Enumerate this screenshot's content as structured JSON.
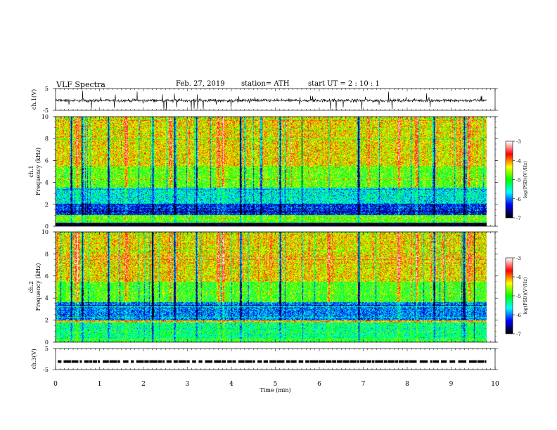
{
  "header": {
    "title": "VLF  Spectra",
    "date": "Feb. 27, 2019",
    "station": "station= ATH",
    "start_ut": "start  UT  =    2  : 10 : 1"
  },
  "colors": {
    "colormap": [
      "#000000",
      "#0000ff",
      "#00ffff",
      "#00ff00",
      "#ffff00",
      "#ff0000",
      "#ffffff"
    ]
  },
  "chart_data": [
    {
      "type": "line",
      "panel": "ch1-waveform",
      "ylabel": "ch.1(V)",
      "yticks": [
        "5",
        "-5"
      ],
      "ylim": [
        -5,
        5
      ],
      "xlim": [
        0,
        10
      ],
      "description_values": {
        "baseline_v": -0.5,
        "noise_amplitude_v": 0.6,
        "spike_max_v": 4.5,
        "data_end_min": 9.8
      }
    },
    {
      "type": "heatmap",
      "panel": "ch1-spectrogram",
      "ylabel_lines": [
        "ch.1",
        "Frequency  (kHz)"
      ],
      "yticks": [
        "0",
        "2",
        "4",
        "6",
        "8",
        "10"
      ],
      "ylim": [
        0,
        10
      ],
      "xlim": [
        0,
        10
      ],
      "data_end_min": 9.8,
      "colorbar": {
        "label": "log(PSD)(V²/Hz)",
        "ticks": [
          "-3",
          "-4",
          "-5",
          "-6",
          "-7"
        ],
        "range": [
          -7,
          -3
        ]
      },
      "bands": [
        {
          "f_from_khz": 0.0,
          "f_to_khz": 0.3,
          "log_psd": -7.0
        },
        {
          "f_from_khz": 0.3,
          "f_to_khz": 1.0,
          "log_psd": -4.8
        },
        {
          "f_from_khz": 1.0,
          "f_to_khz": 2.1,
          "log_psd": -6.3
        },
        {
          "f_from_khz": 2.1,
          "f_to_khz": 3.5,
          "log_psd": -5.6
        },
        {
          "f_from_khz": 3.5,
          "f_to_khz": 5.5,
          "log_psd": -4.8
        },
        {
          "f_from_khz": 5.5,
          "f_to_khz": 10.0,
          "log_psd": -4.3
        }
      ],
      "bright_columns_min": [
        0.5,
        1.6,
        2.6,
        3.7,
        3.8,
        6.2,
        7.8,
        8.2,
        9.4
      ],
      "dark_columns_min": [
        0.35,
        0.6,
        1.2,
        2.2,
        2.7,
        3.2,
        4.2,
        5.1,
        6.9,
        8.6,
        9.3
      ]
    },
    {
      "type": "heatmap",
      "panel": "ch2-spectrogram",
      "ylabel_lines": [
        "ch.2",
        "Frequency  (kHz)"
      ],
      "yticks": [
        "0",
        "2",
        "4",
        "6",
        "8",
        "10"
      ],
      "ylim": [
        0,
        10
      ],
      "xlim": [
        0,
        10
      ],
      "data_end_min": 9.8,
      "colorbar": {
        "label": "log(PSD)(V²/Hz)",
        "ticks": [
          "-3",
          "-4",
          "-5",
          "-6",
          "-7"
        ],
        "range": [
          -7,
          -3
        ]
      },
      "bands": [
        {
          "f_from_khz": 0.0,
          "f_to_khz": 0.3,
          "log_psd": -5.0
        },
        {
          "f_from_khz": 0.3,
          "f_to_khz": 1.8,
          "log_psd": -5.3
        },
        {
          "f_from_khz": 1.8,
          "f_to_khz": 2.0,
          "log_psd": -4.2
        },
        {
          "f_from_khz": 2.0,
          "f_to_khz": 3.6,
          "log_psd": -6.0
        },
        {
          "f_from_khz": 3.6,
          "f_to_khz": 5.5,
          "log_psd": -4.9
        },
        {
          "f_from_khz": 5.5,
          "f_to_khz": 10.0,
          "log_psd": -4.3
        }
      ],
      "bright_columns_min": [
        0.5,
        1.6,
        2.6,
        3.7,
        3.8,
        6.2,
        7.8,
        8.2,
        9.4
      ],
      "dark_columns_min": [
        0.35,
        0.6,
        1.2,
        2.2,
        2.7,
        3.2,
        4.2,
        5.1,
        6.9,
        8.6,
        9.3
      ]
    },
    {
      "type": "line",
      "panel": "ch3-waveform",
      "ylabel": "ch.3(V)",
      "yticks": [
        "5",
        "-5"
      ],
      "ylim": [
        -5,
        5
      ],
      "xlim": [
        0,
        10
      ],
      "xlabel": "Time  (min)",
      "xticks": [
        "0",
        "1",
        "2",
        "3",
        "4",
        "5",
        "6",
        "7",
        "8",
        "9",
        "10"
      ],
      "description_values": {
        "level_v": -1.2,
        "data_end_min": 9.8
      }
    }
  ]
}
